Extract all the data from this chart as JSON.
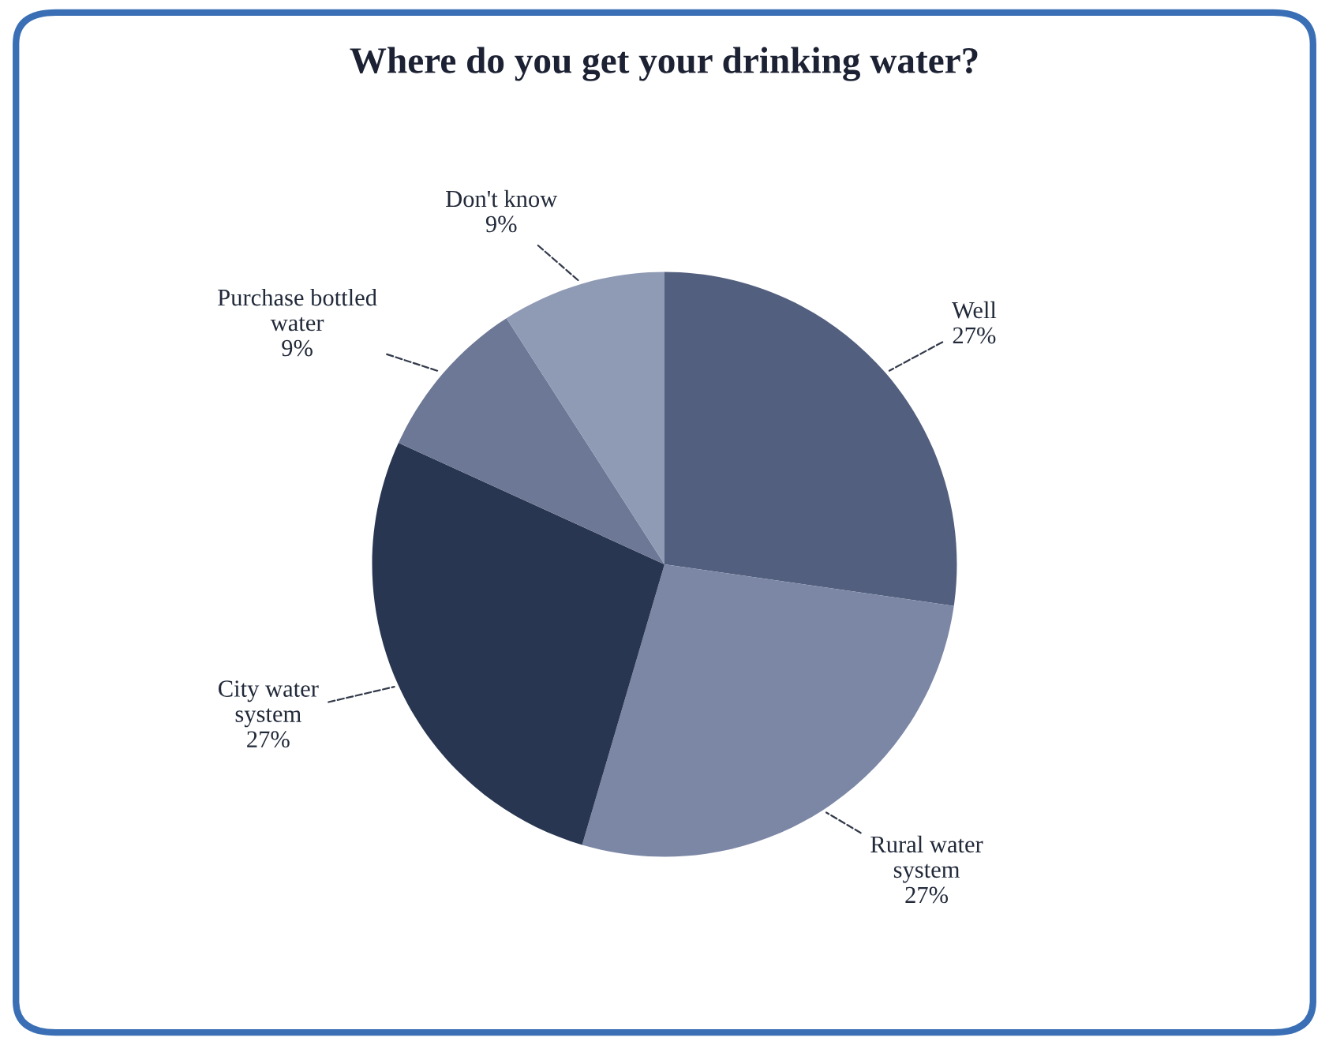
{
  "chart_data": {
    "type": "pie",
    "title": "Where do you get your drinking water?",
    "categories": [
      "Well",
      "Rural water\nsystem",
      "City water\nsystem",
      "Purchase bottled\nwater",
      "Don't know"
    ],
    "values": [
      27,
      27,
      27,
      9,
      9
    ],
    "value_labels": [
      "27%",
      "27%",
      "27%",
      "9%",
      "9%"
    ],
    "colors": [
      "#525f7e",
      "#7c87a6",
      "#283651",
      "#6d7896",
      "#8f9ab5"
    ],
    "legend": false
  }
}
